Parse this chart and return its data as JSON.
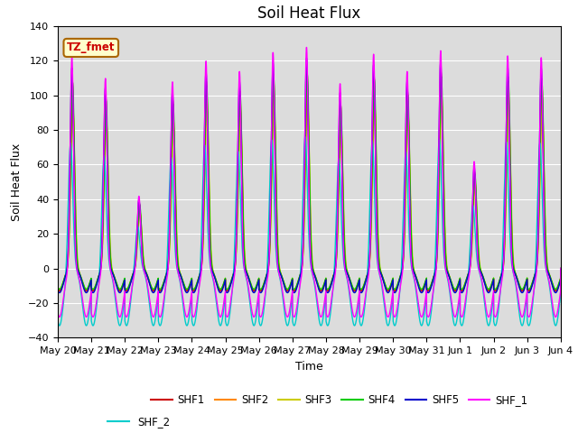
{
  "title": "Soil Heat Flux",
  "ylabel": "Soil Heat Flux",
  "xlabel": "Time",
  "ylim": [
    -40,
    140
  ],
  "bg_color": "#dcdcdc",
  "legend_label": "TZ_fmet",
  "series": [
    {
      "name": "SHF1",
      "color": "#cc0000"
    },
    {
      "name": "SHF2",
      "color": "#ff8800"
    },
    {
      "name": "SHF3",
      "color": "#cccc00"
    },
    {
      "name": "SHF4",
      "color": "#00cc00"
    },
    {
      "name": "SHF5",
      "color": "#0000cc"
    },
    {
      "name": "SHF_1",
      "color": "#ff00ff"
    },
    {
      "name": "SHF_2",
      "color": "#00cccc"
    }
  ],
  "xtick_labels": [
    "May 20",
    "May 21",
    "May 22",
    "May 23",
    "May 24",
    "May 25",
    "May 26",
    "May 27",
    "May 28",
    "May 29",
    "May 30",
    "May 31",
    "Jun 1",
    "Jun 2",
    "Jun 3",
    "Jun 4"
  ],
  "num_days": 15,
  "pts_per_day": 288,
  "day_peaks": [
    122,
    110,
    42,
    108,
    120,
    114,
    125,
    128,
    107,
    124,
    114,
    126,
    62,
    123,
    122
  ],
  "title_fontsize": 12,
  "label_fontsize": 9,
  "tick_fontsize": 8
}
